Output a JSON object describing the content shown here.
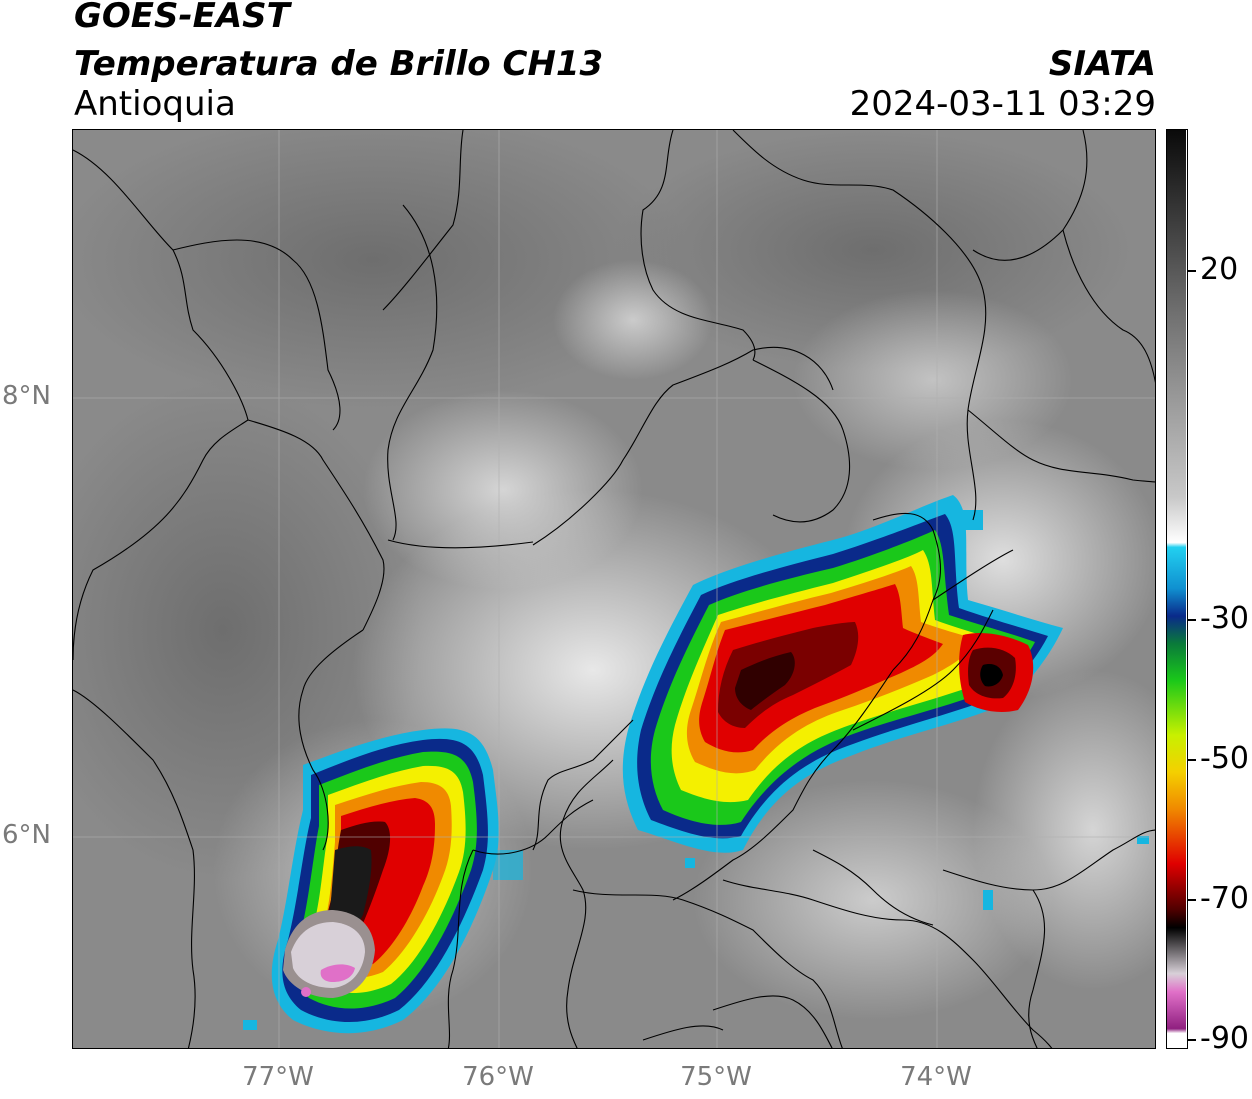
{
  "header": {
    "satellite": "GOES-EAST",
    "product": "Temperatura de Brillo CH13",
    "region": "Antioquia",
    "organization": "SIATA",
    "datetime": "2024-03-11 03:29"
  },
  "map": {
    "latitude_labels": [
      "8°N",
      "6°N"
    ],
    "longitude_labels": [
      "77°W",
      "76°W",
      "75°W",
      "74°W"
    ],
    "gridlines": true
  },
  "colorbar": {
    "tick_labels": [
      "20",
      "-30",
      "-50",
      "-70",
      "-90"
    ],
    "range": [
      -90,
      40
    ],
    "colors": {
      "warm_top": "#0a0a0a",
      "mid_gray": "#9a9a9a",
      "white": "#ffffff",
      "cyan": "#22c8e8",
      "blue": "#0a2a8a",
      "green": "#1ac81a",
      "yellow": "#f4f000",
      "orange": "#f08a00",
      "red": "#e00000",
      "dark_red": "#500000",
      "black": "#000000",
      "light_gray": "#d8d0d8",
      "pink": "#e070c8",
      "purple": "#902080"
    }
  }
}
